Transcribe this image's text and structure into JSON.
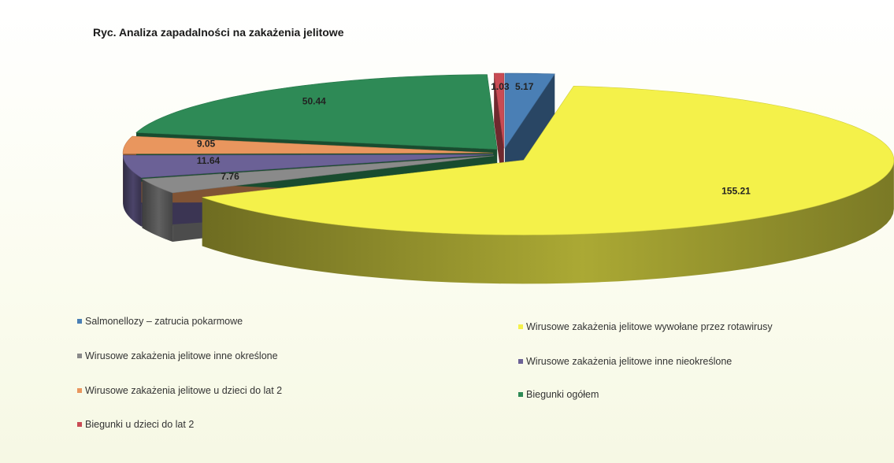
{
  "chart_data": {
    "type": "pie",
    "title": "Ryc. Analiza zapadalności na zakażenia jelitowe",
    "series": [
      {
        "name": "Salmonellozy – zatrucia pokarmowe",
        "value": 5.17,
        "label": "5.17",
        "color": "#4a7fb5"
      },
      {
        "name": "Wirusowe zakażenia jelitowe wywołane przez rotawirusy",
        "value": 155.21,
        "label": "155.21",
        "color": "#f4f14a"
      },
      {
        "name": "Wirusowe zakażenia jelitowe inne określone",
        "value": 7.76,
        "label": "7.76",
        "color": "#8a8a8a"
      },
      {
        "name": "Wirusowe zakażenia jelitowe inne nieokreślone",
        "value": 11.64,
        "label": "11.64",
        "color": "#6b6196"
      },
      {
        "name": "Wirusowe zakażenia jelitowe u dzieci do lat 2",
        "value": 9.05,
        "label": "9.05",
        "color": "#e9965e"
      },
      {
        "name": "Biegunki ogółem",
        "value": 50.44,
        "label": "50.44",
        "color": "#2e8a56"
      },
      {
        "name": "Biegunki u dzieci do lat 2",
        "value": 1.03,
        "label": "1.03",
        "color": "#c94b54"
      }
    ],
    "legend_position": "bottom"
  }
}
